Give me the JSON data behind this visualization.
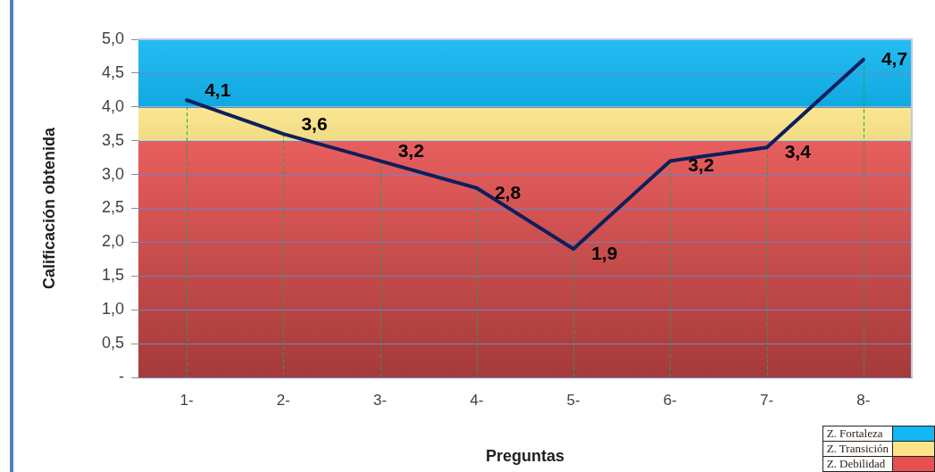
{
  "chart_data": {
    "type": "line",
    "xlabel": "Preguntas",
    "ylabel": "Calificación obtenida",
    "categories": [
      "1-",
      "2-",
      "3-",
      "4-",
      "5-",
      "6-",
      "7-",
      "8-"
    ],
    "series": [
      {
        "color": "#0d1f5c",
        "values": [
          4.1,
          3.6,
          3.2,
          2.8,
          1.9,
          3.2,
          3.4,
          4.7
        ],
        "value_labels": [
          "4,1",
          "3,6",
          "3,2",
          "2,8",
          "1,9",
          "3,2",
          "3,4",
          "4,7"
        ]
      }
    ],
    "ylim": [
      0,
      5
    ],
    "yticks": [
      {
        "value": 0,
        "label": "-"
      },
      {
        "value": 0.5,
        "label": "0,5"
      },
      {
        "value": 1,
        "label": "1,0"
      },
      {
        "value": 1.5,
        "label": "1,5"
      },
      {
        "value": 2,
        "label": "2,0"
      },
      {
        "value": 2.5,
        "label": "2,5"
      },
      {
        "value": 3,
        "label": "3,0"
      },
      {
        "value": 3.5,
        "label": "3,5"
      },
      {
        "value": 4,
        "label": "4,0"
      },
      {
        "value": 4.5,
        "label": "4,5"
      },
      {
        "value": 5,
        "label": "5,0"
      }
    ],
    "grid": true,
    "legend": "bottom right",
    "marker": "none",
    "line_style": "solid",
    "bands": [
      {
        "axis": "y",
        "from": 4,
        "to": 5,
        "label": "Z. Fortaleza",
        "color": "#12b6f2"
      },
      {
        "axis": "y",
        "from": 3.5,
        "to": 4,
        "label": "Z. Transición",
        "color": "#fbe48a"
      },
      {
        "axis": "y",
        "from": 0,
        "to": 3.5,
        "label": "Z. Debilidad",
        "color": "#e65050"
      }
    ]
  }
}
